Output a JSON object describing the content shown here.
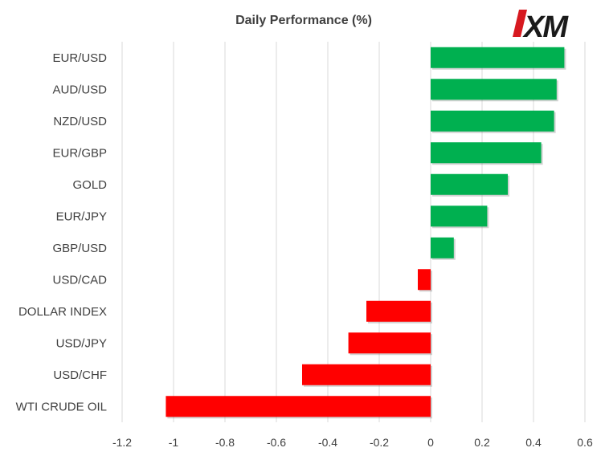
{
  "chart_data": {
    "type": "bar",
    "orientation": "horizontal",
    "title": "Daily Performance  (%)",
    "categories": [
      "EUR/USD",
      "AUD/USD",
      "NZD/USD",
      "EUR/GBP",
      "GOLD",
      "EUR/JPY",
      "GBP/USD",
      "USD/CAD",
      "DOLLAR INDEX",
      "USD/JPY",
      "USD/CHF",
      "WTI CRUDE OIL"
    ],
    "values": [
      0.52,
      0.49,
      0.48,
      0.43,
      0.3,
      0.22,
      0.09,
      -0.05,
      -0.25,
      -0.32,
      -0.5,
      -1.03
    ],
    "xlim": [
      -1.2,
      0.6
    ],
    "xticks": [
      -1.2,
      -1,
      -0.8,
      -0.6,
      -0.4,
      -0.2,
      0,
      0.2,
      0.4,
      0.6
    ],
    "xtick_labels": [
      "-1.2",
      "-1",
      "-0.8",
      "-0.6",
      "-0.4",
      "-0.2",
      "0",
      "0.2",
      "0.4",
      "0.6"
    ],
    "grid": "vertical",
    "colors": {
      "positive": "#00b050",
      "negative": "#ff0000",
      "gridline": "#d9d9d9",
      "text": "#404040"
    }
  },
  "logo": {
    "text": "XM",
    "accent": "#d71920",
    "color": "#1a1a1a"
  }
}
